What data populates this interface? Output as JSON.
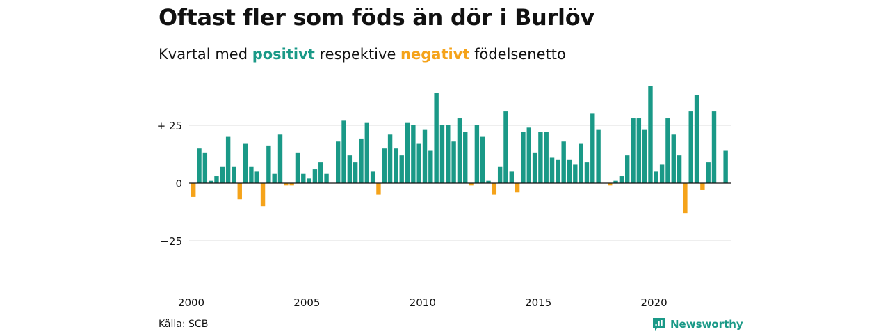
{
  "header": {
    "title": "Oftast fler som föds än dör i Burlöv",
    "subtitle_pre": "Kvartal med ",
    "subtitle_pos": "positivt",
    "subtitle_mid": " respektive ",
    "subtitle_neg": "negativt",
    "subtitle_post": " födelsenetto"
  },
  "footer": {
    "source": "Källa: SCB",
    "brand": "Newsworthy",
    "brand_icon": "newsworthy-logo-icon"
  },
  "colors": {
    "positive": "#1a9987",
    "negative": "#f5a31a",
    "grid": "#dddddd",
    "zero_line": "#111111",
    "text": "#111111"
  },
  "chart_data": {
    "type": "bar",
    "x_type": "quarter",
    "start": "2000 Q1",
    "x_tick_labels": [
      "2000",
      "2005",
      "2010",
      "2015",
      "2020"
    ],
    "y_tick_labels": [
      "+ 25",
      "0",
      "−25"
    ],
    "y_ticks": [
      25,
      0,
      -25
    ],
    "ylim": [
      -40,
      45
    ],
    "grid": true,
    "legend": "none",
    "values": [
      -6,
      15,
      13,
      1,
      3,
      7,
      20,
      7,
      -7,
      17,
      7,
      5,
      -10,
      16,
      4,
      21,
      -1,
      -1,
      13,
      4,
      2,
      6,
      9,
      4,
      0,
      18,
      27,
      12,
      9,
      19,
      26,
      5,
      -5,
      15,
      21,
      15,
      12,
      26,
      25,
      17,
      23,
      14,
      39,
      25,
      25,
      18,
      28,
      22,
      -1,
      25,
      20,
      1,
      -5,
      7,
      31,
      5,
      -4,
      22,
      24,
      13,
      22,
      22,
      11,
      10,
      18,
      10,
      8,
      17,
      9,
      30,
      23,
      0,
      -1,
      1,
      3,
      12,
      28,
      28,
      23,
      42,
      5,
      8,
      28,
      21,
      12,
      -13,
      31,
      38,
      -3,
      9,
      31,
      0,
      14
    ]
  }
}
